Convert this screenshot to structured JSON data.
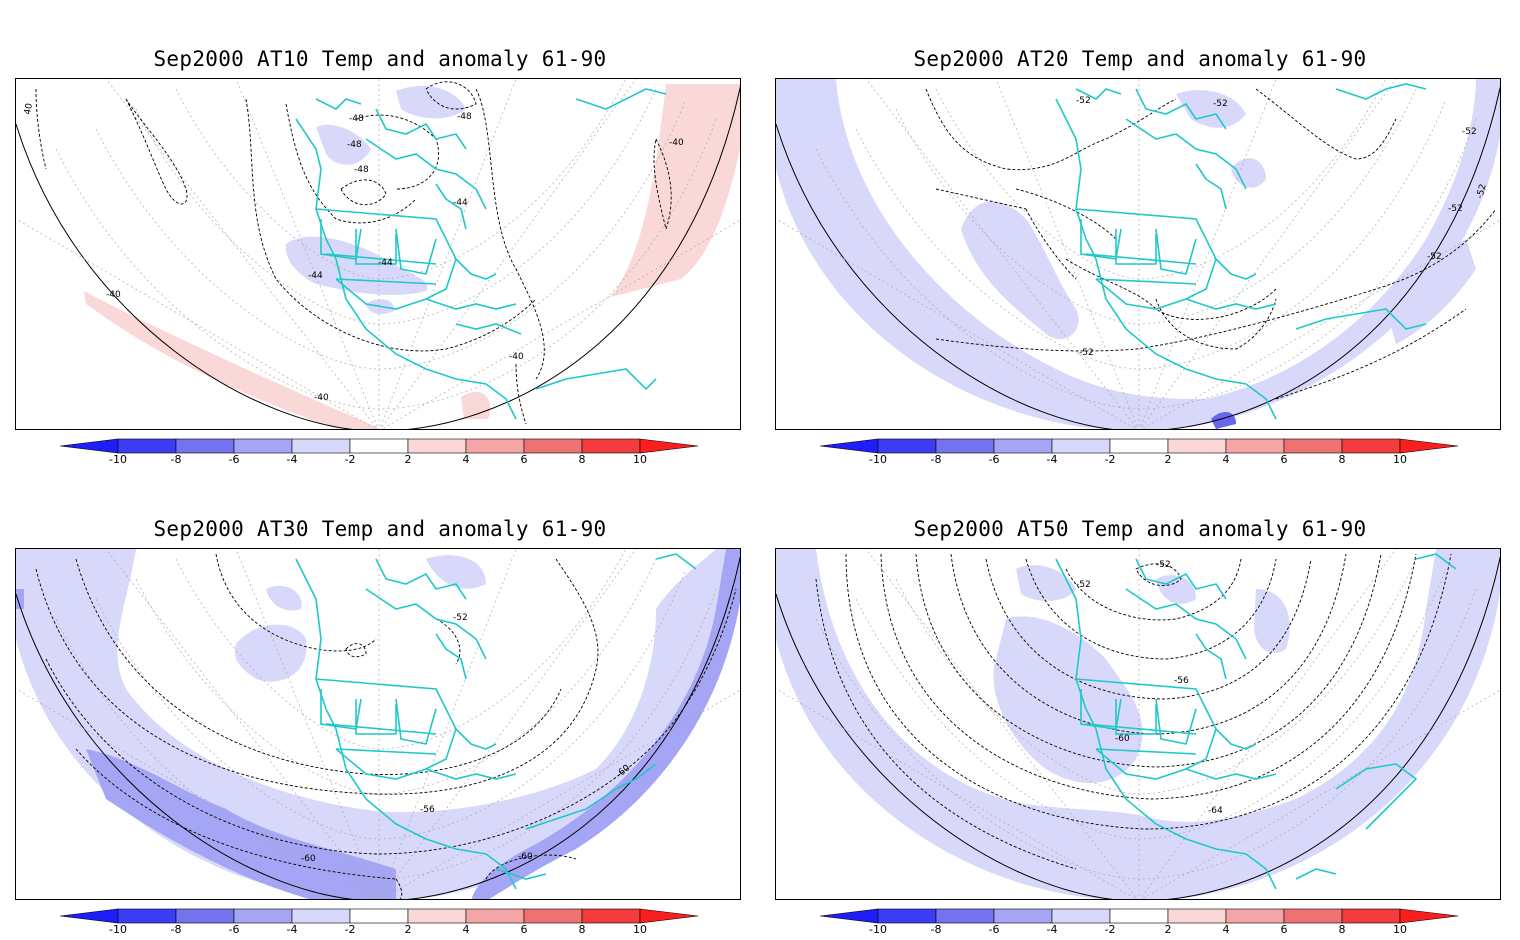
{
  "panels": [
    {
      "title": "Sep2000 AT10 Temp and anomaly 61-90",
      "contour_labels": [
        "40",
        "-48",
        "-48",
        "-48",
        "-48",
        "-44",
        "-44",
        "-44",
        "-40",
        "-40",
        "-40",
        "-40"
      ]
    },
    {
      "title": "Sep2000 AT20 Temp and anomaly 61-90",
      "contour_labels": [
        "-52",
        "-52",
        "-52",
        "-52",
        "-52",
        "-52",
        "-52"
      ]
    },
    {
      "title": "Sep2000 AT30 Temp and anomaly 61-90",
      "contour_labels": [
        "-52",
        "-56",
        "-60",
        "-60",
        "-60"
      ]
    },
    {
      "title": "Sep2000 AT50 Temp and anomaly 61-90",
      "contour_labels": [
        "-52",
        "-52",
        "-56",
        "-60",
        "-64"
      ]
    }
  ],
  "colorbar": {
    "ticks": [
      "-10",
      "-8",
      "-6",
      "-4",
      "-2",
      "2",
      "4",
      "6",
      "8",
      "10"
    ],
    "colors": [
      "#1e1efa",
      "#3c3cf5",
      "#7373f0",
      "#a5a5f5",
      "#d8d8fa",
      "#ffffff",
      "#fad8d8",
      "#f5a5a5",
      "#f07373",
      "#f53c3c",
      "#fa1e1e"
    ]
  },
  "colors": {
    "coastline": "#20c8c8",
    "contour": "#000000",
    "grid": "#aaaaaa",
    "neg_anomaly_light": "#d8d8fa",
    "neg_anomaly_mid": "#a5a5f5",
    "pos_anomaly_light": "#fad8d8"
  }
}
